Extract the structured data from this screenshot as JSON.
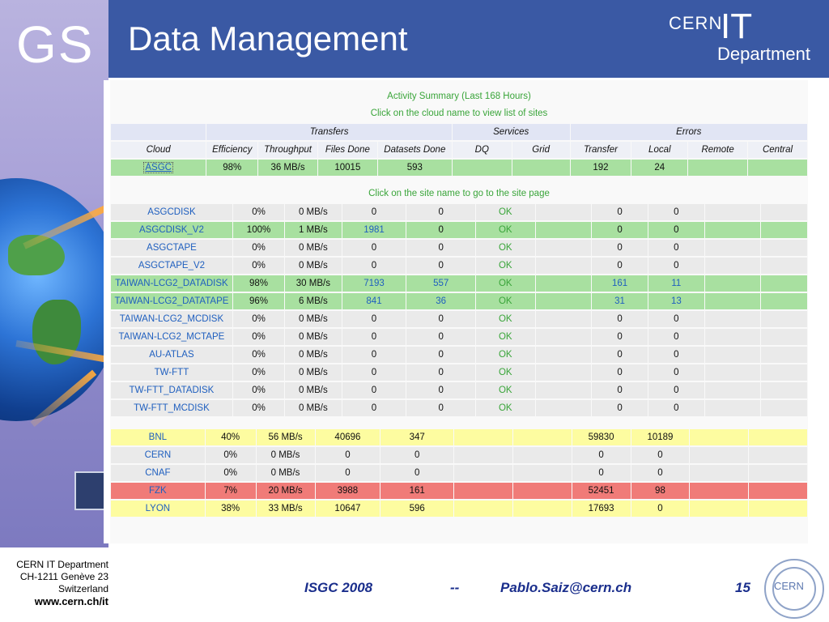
{
  "header": {
    "title": "Data Management",
    "gs_logo": "GS",
    "cern_it": {
      "cern": "CERN",
      "it": "IT",
      "department": "Department"
    }
  },
  "summary": {
    "caption1": "Activity Summary (Last 168 Hours)",
    "caption2": "Click on the cloud name to view list of sites",
    "caption3": "Click on the site name to go to the site page",
    "groups": {
      "transfers": "Transfers",
      "services": "Services",
      "errors": "Errors"
    },
    "columns": [
      "Cloud",
      "Efficiency",
      "Throughput",
      "Files Done",
      "Datasets Done",
      "DQ",
      "Grid",
      "Transfer",
      "Local",
      "Remote",
      "Central"
    ],
    "selected_cloud": {
      "cloud": "ASGC",
      "efficiency": "98%",
      "throughput": "36 MB/s",
      "files": "10015",
      "datasets": "593",
      "dq": "",
      "grid": "",
      "transfer": "192",
      "local": "24",
      "remote": "",
      "central": ""
    },
    "sites": [
      {
        "name": "ASGCDISK",
        "eff": "0%",
        "thr": "0 MB/s",
        "files": "0",
        "datasets": "0",
        "dq": "OK",
        "grid": "",
        "transfer": "0",
        "local": "0",
        "remote": "",
        "central": "",
        "style": "grey"
      },
      {
        "name": "ASGCDISK_V2",
        "eff": "100%",
        "thr": "1 MB/s",
        "files": "1981",
        "datasets": "0",
        "dq": "OK",
        "grid": "",
        "transfer": "0",
        "local": "0",
        "remote": "",
        "central": "",
        "style": "green"
      },
      {
        "name": "ASGCTAPE",
        "eff": "0%",
        "thr": "0 MB/s",
        "files": "0",
        "datasets": "0",
        "dq": "OK",
        "grid": "",
        "transfer": "0",
        "local": "0",
        "remote": "",
        "central": "",
        "style": "grey"
      },
      {
        "name": "ASGCTAPE_V2",
        "eff": "0%",
        "thr": "0 MB/s",
        "files": "0",
        "datasets": "0",
        "dq": "OK",
        "grid": "",
        "transfer": "0",
        "local": "0",
        "remote": "",
        "central": "",
        "style": "grey"
      },
      {
        "name": "TAIWAN-LCG2_DATADISK",
        "eff": "98%",
        "thr": "30 MB/s",
        "files": "7193",
        "datasets": "557",
        "dq": "OK",
        "grid": "",
        "transfer": "161",
        "local": "11",
        "remote": "",
        "central": "",
        "style": "green"
      },
      {
        "name": "TAIWAN-LCG2_DATATAPE",
        "eff": "96%",
        "thr": "6 MB/s",
        "files": "841",
        "datasets": "36",
        "dq": "OK",
        "grid": "",
        "transfer": "31",
        "local": "13",
        "remote": "",
        "central": "",
        "style": "green"
      },
      {
        "name": "TAIWAN-LCG2_MCDISK",
        "eff": "0%",
        "thr": "0 MB/s",
        "files": "0",
        "datasets": "0",
        "dq": "OK",
        "grid": "",
        "transfer": "0",
        "local": "0",
        "remote": "",
        "central": "",
        "style": "grey"
      },
      {
        "name": "TAIWAN-LCG2_MCTAPE",
        "eff": "0%",
        "thr": "0 MB/s",
        "files": "0",
        "datasets": "0",
        "dq": "OK",
        "grid": "",
        "transfer": "0",
        "local": "0",
        "remote": "",
        "central": "",
        "style": "grey"
      },
      {
        "name": "AU-ATLAS",
        "eff": "0%",
        "thr": "0 MB/s",
        "files": "0",
        "datasets": "0",
        "dq": "OK",
        "grid": "",
        "transfer": "0",
        "local": "0",
        "remote": "",
        "central": "",
        "style": "grey"
      },
      {
        "name": "TW-FTT",
        "eff": "0%",
        "thr": "0 MB/s",
        "files": "0",
        "datasets": "0",
        "dq": "OK",
        "grid": "",
        "transfer": "0",
        "local": "0",
        "remote": "",
        "central": "",
        "style": "grey"
      },
      {
        "name": "TW-FTT_DATADISK",
        "eff": "0%",
        "thr": "0 MB/s",
        "files": "0",
        "datasets": "0",
        "dq": "OK",
        "grid": "",
        "transfer": "0",
        "local": "0",
        "remote": "",
        "central": "",
        "style": "grey"
      },
      {
        "name": "TW-FTT_MCDISK",
        "eff": "0%",
        "thr": "0 MB/s",
        "files": "0",
        "datasets": "0",
        "dq": "OK",
        "grid": "",
        "transfer": "0",
        "local": "0",
        "remote": "",
        "central": "",
        "style": "grey"
      }
    ],
    "clouds": [
      {
        "name": "BNL",
        "eff": "40%",
        "thr": "56 MB/s",
        "files": "40696",
        "datasets": "347",
        "transfer": "59830",
        "local": "10189",
        "style": "yellow"
      },
      {
        "name": "CERN",
        "eff": "0%",
        "thr": "0 MB/s",
        "files": "0",
        "datasets": "0",
        "transfer": "0",
        "local": "0",
        "style": "grey"
      },
      {
        "name": "CNAF",
        "eff": "0%",
        "thr": "0 MB/s",
        "files": "0",
        "datasets": "0",
        "transfer": "0",
        "local": "0",
        "style": "grey"
      },
      {
        "name": "FZK",
        "eff": "7%",
        "thr": "20 MB/s",
        "files": "3988",
        "datasets": "161",
        "transfer": "52451",
        "local": "98",
        "style": "red"
      },
      {
        "name": "LYON",
        "eff": "38%",
        "thr": "33 MB/s",
        "files": "10647",
        "datasets": "596",
        "transfer": "17693",
        "local": "0",
        "style": "yellow"
      }
    ]
  },
  "footer": {
    "org_line1": "CERN IT Department",
    "org_line2": "CH-1211 Genève 23",
    "org_line3": "Switzerland",
    "url": "www.cern.ch/it",
    "event": "ISGC 2008",
    "separator": "--",
    "email": "Pablo.Saiz@cern.ch",
    "page": "15",
    "logo_text": "CERN"
  },
  "colors": {
    "header_bg": "#3a59a4",
    "ok_green": "#3aa53a",
    "link_blue": "#1f5fbf",
    "row_green": "#a8e0a0",
    "row_yellow": "#fdfca0",
    "row_red": "#f07b78"
  }
}
